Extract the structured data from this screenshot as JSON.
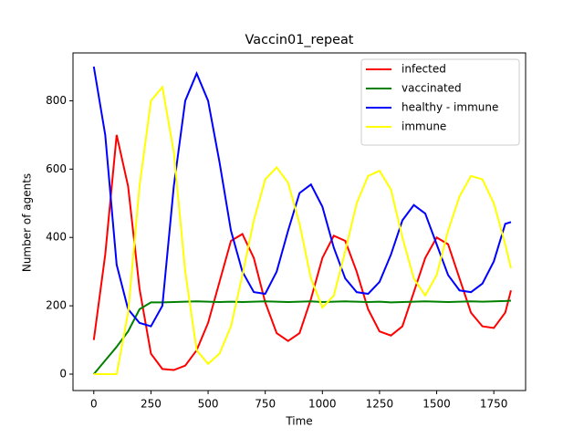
{
  "chart_data": {
    "type": "line",
    "title": "Vaccin01_repeat",
    "x_label": "Time",
    "y_label": "Number of agents",
    "x": [
      0,
      50,
      100,
      150,
      200,
      250,
      300,
      350,
      400,
      450,
      500,
      550,
      600,
      650,
      700,
      750,
      800,
      850,
      900,
      950,
      1000,
      1050,
      1100,
      1150,
      1200,
      1250,
      1300,
      1350,
      1400,
      1450,
      1500,
      1550,
      1600,
      1650,
      1700,
      1750,
      1800,
      1825
    ],
    "series": [
      {
        "name": "infected",
        "color": "#ff0000",
        "values": [
          100,
          350,
          700,
          550,
          250,
          60,
          15,
          12,
          25,
          70,
          150,
          270,
          390,
          410,
          340,
          210,
          120,
          97,
          120,
          220,
          340,
          405,
          390,
          300,
          190,
          125,
          113,
          140,
          240,
          340,
          400,
          380,
          280,
          180,
          140,
          135,
          180,
          245
        ]
      },
      {
        "name": "vaccinated",
        "color": "#008000",
        "values": [
          0,
          40,
          80,
          125,
          190,
          210,
          210,
          211,
          212,
          213,
          212,
          211,
          212,
          211,
          212,
          213,
          212,
          211,
          212,
          213,
          211,
          212,
          213,
          212,
          211,
          212,
          210,
          211,
          212,
          213,
          212,
          211,
          212,
          213,
          212,
          213,
          214,
          215
        ]
      },
      {
        "name": "healthy - immune",
        "color": "#0000ff",
        "values": [
          900,
          700,
          320,
          190,
          150,
          140,
          200,
          550,
          800,
          880,
          800,
          620,
          420,
          300,
          240,
          235,
          300,
          420,
          530,
          555,
          490,
          370,
          280,
          240,
          235,
          270,
          350,
          450,
          495,
          470,
          380,
          290,
          245,
          240,
          265,
          330,
          440,
          445
        ]
      },
      {
        "name": "immune",
        "color": "#ffff00",
        "values": [
          0,
          0,
          0,
          180,
          550,
          800,
          840,
          650,
          300,
          70,
          30,
          60,
          140,
          290,
          450,
          570,
          605,
          560,
          440,
          280,
          195,
          230,
          360,
          500,
          580,
          595,
          540,
          400,
          280,
          230,
          290,
          420,
          520,
          580,
          570,
          500,
          380,
          310
        ]
      }
    ],
    "xlim": [
      -91,
      1889
    ],
    "ylim": [
      -48,
      940
    ],
    "xticks": [
      0,
      250,
      500,
      750,
      1000,
      1250,
      1500,
      1750
    ],
    "yticks": [
      0,
      200,
      400,
      600,
      800
    ],
    "legend": "upper right"
  }
}
